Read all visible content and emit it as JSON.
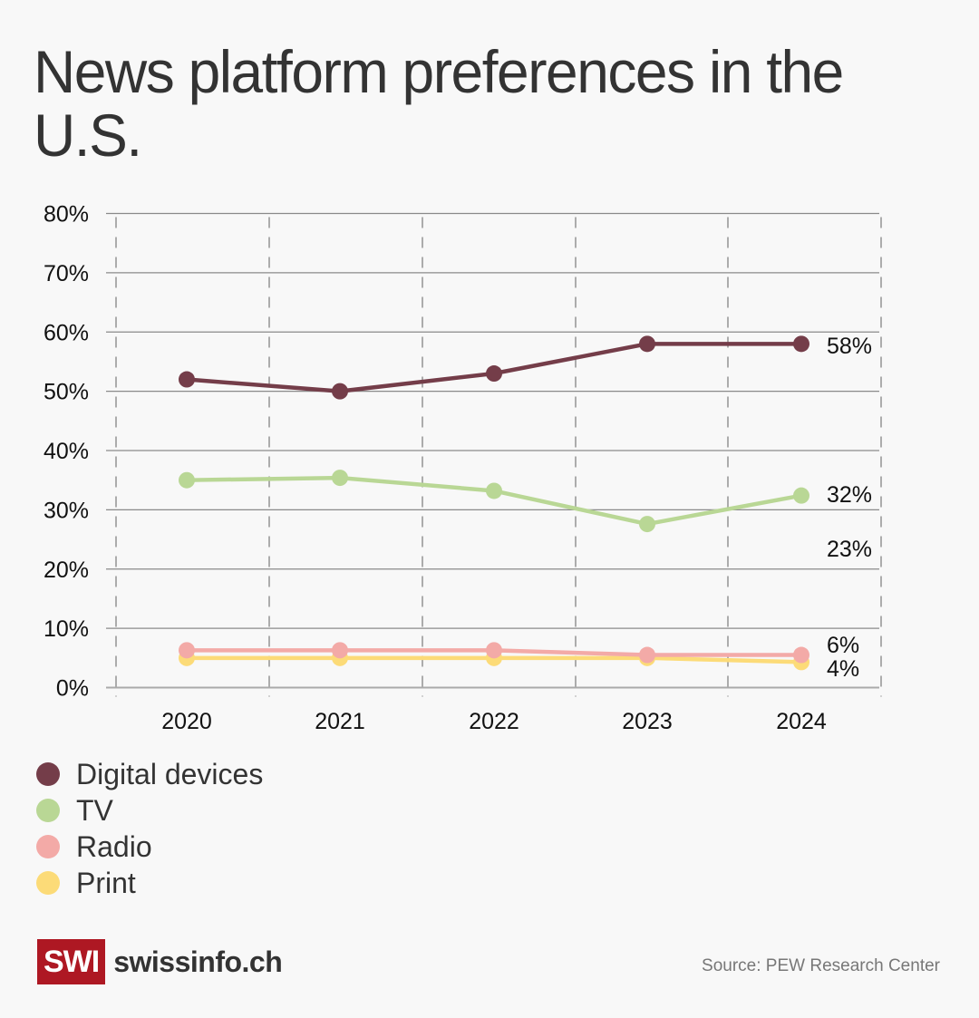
{
  "title": "News platform preferences in the U.S.",
  "chart_data": {
    "type": "line",
    "title": "News platform preferences in the U.S.",
    "xlabel": "",
    "ylabel": "",
    "categories": [
      "2020",
      "2021",
      "2022",
      "2023",
      "2024"
    ],
    "ylim": [
      0,
      80
    ],
    "y_ticks": [
      0,
      10,
      20,
      30,
      40,
      50,
      60,
      70,
      80
    ],
    "y_tick_labels": [
      "0%",
      "10%",
      "20%",
      "30%",
      "40%",
      "50%",
      "60%",
      "70%",
      "80%"
    ],
    "grid": true,
    "legend_position": "bottom-left",
    "series": [
      {
        "name": "Digital devices",
        "color": "#743d49",
        "values": [
          52,
          50,
          53,
          58,
          58
        ]
      },
      {
        "name": "TV",
        "color": "#b9d795",
        "values": [
          35,
          35.4,
          33.2,
          27.6,
          32.4
        ]
      },
      {
        "name": "Radio",
        "color": "#f3aaa7",
        "values": [
          6.3,
          6.3,
          6.3,
          5.5,
          5.5
        ]
      },
      {
        "name": "Print",
        "color": "#fcdb78",
        "values": [
          5,
          5,
          5,
          5,
          4.3
        ]
      }
    ],
    "end_labels": [
      {
        "text": "58%",
        "series": "Digital devices"
      },
      {
        "text": "32%",
        "series": "TV"
      },
      {
        "text": "23%",
        "series": ""
      },
      {
        "text": "6%",
        "series": "Radio"
      },
      {
        "text": "4%",
        "series": "Print"
      }
    ]
  },
  "legend": [
    {
      "label": "Digital devices",
      "color": "#743d49"
    },
    {
      "label": "TV",
      "color": "#b9d795"
    },
    {
      "label": "Radio",
      "color": "#f3aaa7"
    },
    {
      "label": "Print",
      "color": "#fcdb78"
    }
  ],
  "footer": {
    "logo_mark": "SWI",
    "logo_text": "swissinfo.ch",
    "source": "Source: PEW Research Center"
  }
}
